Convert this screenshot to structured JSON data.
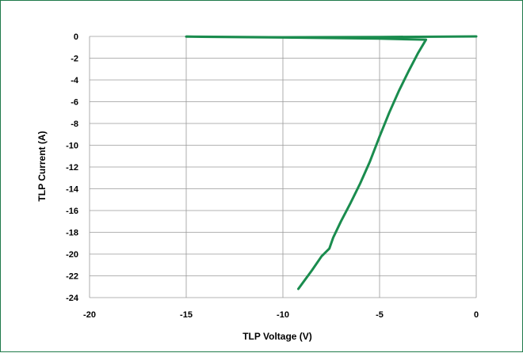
{
  "chart_data": {
    "type": "line",
    "xlabel": "TLP Voltage (V)",
    "ylabel": "TLP Current (A)",
    "xlim": [
      -20,
      0
    ],
    "ylim": [
      -24,
      0
    ],
    "x_ticks": [
      -20,
      -15,
      -10,
      -5,
      0
    ],
    "y_ticks": [
      0,
      -2,
      -4,
      -6,
      -8,
      -10,
      -12,
      -14,
      -16,
      -18,
      -20,
      -22,
      -24
    ],
    "x_tick_labels": [
      "-20",
      "-15",
      "-10",
      "-5",
      "0"
    ],
    "y_tick_labels": [
      "0",
      "-2",
      "-4",
      "-6",
      "-8",
      "-10",
      "-12",
      "-14",
      "-16",
      "-18",
      "-20",
      "-22",
      "-24"
    ],
    "grid": true,
    "grid_lines": "vertical and horizontal",
    "legend": "none",
    "line_color": "#1a8c4e",
    "frame_color": "#1f7a4a",
    "series": [
      {
        "x": [
          0,
          -1.5,
          -5.0,
          -10.0,
          -15.0,
          -10.0,
          -5.0,
          -2.6,
          -2.7,
          -3.0,
          -3.5,
          -4.0,
          -4.5,
          -5.0,
          -5.5,
          -6.0,
          -6.5,
          -7.0,
          -7.4,
          -7.6,
          -8.0,
          -8.5,
          -9.2
        ],
        "y": [
          0,
          -0.02,
          -0.05,
          -0.08,
          -0.02,
          -0.1,
          -0.2,
          -0.3,
          -0.6,
          -1.5,
          -3.2,
          -5.0,
          -7.0,
          -9.2,
          -11.5,
          -13.5,
          -15.3,
          -17.0,
          -18.5,
          -19.5,
          -20.2,
          -21.5,
          -23.2
        ]
      }
    ]
  }
}
